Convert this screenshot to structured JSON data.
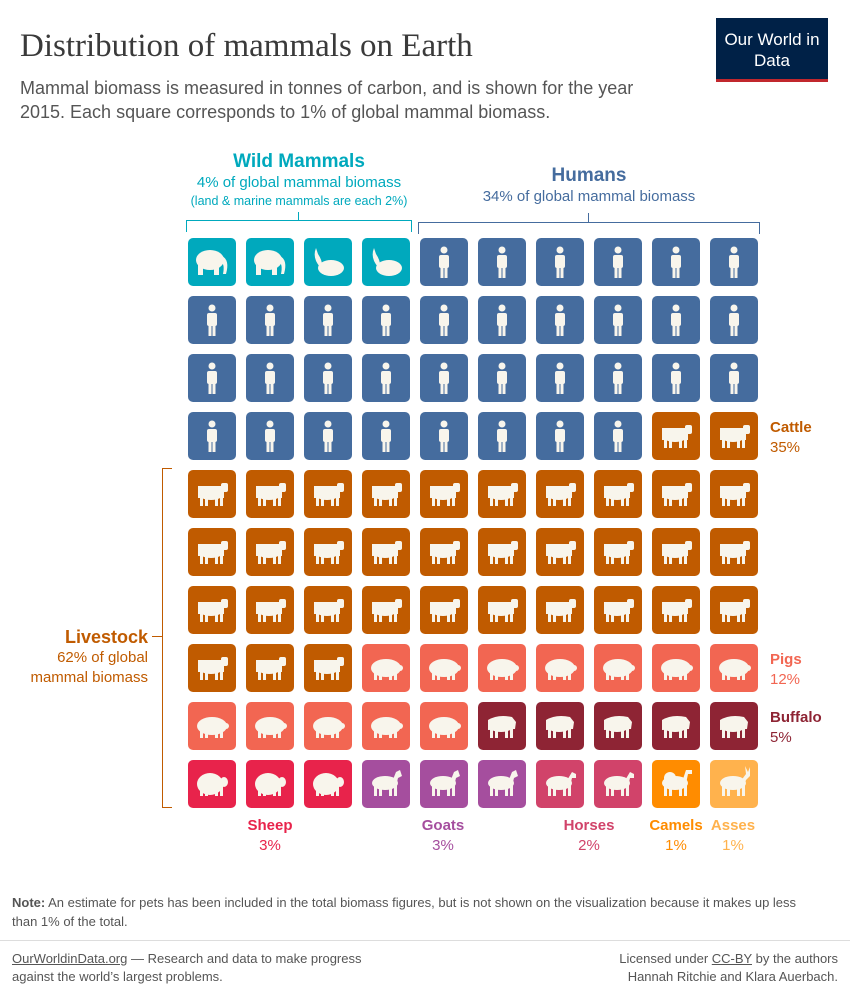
{
  "header": {
    "title": "Distribution of mammals on Earth",
    "subtitle": "Mammal biomass is measured in tonnes of carbon, and is shown for the year 2015. Each square corresponds to 1% of global mammal biomass.",
    "logo": "Our World in Data"
  },
  "groups": {
    "wild": {
      "title": "Wild Mammals",
      "line1": "4% of global mammal biomass",
      "line2": "(land & marine mammals are each 2%)",
      "color": "#00A9BD"
    },
    "humans": {
      "title": "Humans",
      "line1": "34% of global mammal biomass",
      "color": "#456C9E"
    },
    "livestock": {
      "title": "Livestock",
      "line1": "62% of global",
      "line2": "mammal biomass",
      "color": "#C05B00"
    }
  },
  "chart_data": {
    "type": "waffle",
    "unit": "1% of global mammal biomass per square",
    "grid": [
      10,
      10
    ],
    "categories": [
      {
        "name": "Land mammals",
        "value": 2,
        "color": "#00A9BD",
        "icon": "elephant-icon"
      },
      {
        "name": "Marine mammals",
        "value": 2,
        "color": "#00A9BD",
        "icon": "whale-icon"
      },
      {
        "name": "Humans",
        "value": 34,
        "color": "#456C9E",
        "icon": "human-icon"
      },
      {
        "name": "Cattle",
        "value": 35,
        "color": "#C05B00",
        "icon": "cow-icon",
        "label": "Cattle",
        "pct": "35%"
      },
      {
        "name": "Pigs",
        "value": 12,
        "color": "#F26652",
        "icon": "pig-icon",
        "label": "Pigs",
        "pct": "12%"
      },
      {
        "name": "Buffalo",
        "value": 5,
        "color": "#8E2434",
        "icon": "buffalo-icon",
        "label": "Buffalo",
        "pct": "5%"
      },
      {
        "name": "Sheep",
        "value": 3,
        "color": "#E8234B",
        "icon": "sheep-icon",
        "label": "Sheep",
        "pct": "3%"
      },
      {
        "name": "Goats",
        "value": 3,
        "color": "#A54E9E",
        "icon": "goat-icon",
        "label": "Goats",
        "pct": "3%"
      },
      {
        "name": "Horses",
        "value": 2,
        "color": "#D1436A",
        "icon": "horse-icon",
        "label": "Horses",
        "pct": "2%"
      },
      {
        "name": "Camels",
        "value": 1,
        "color": "#FF8C00",
        "icon": "camel-icon",
        "label": "Camels",
        "pct": "1%"
      },
      {
        "name": "Asses",
        "value": 1,
        "color": "#FFB24D",
        "icon": "donkey-icon",
        "label": "Asses",
        "pct": "1%"
      }
    ]
  },
  "note": {
    "label": "Note:",
    "text": " An estimate for pets has been included in the total biomass figures, but is not shown on the visualization because it makes up less than 1% of the total."
  },
  "footer": {
    "link": "OurWorldinData.org",
    "left": " — Research and data to make progress against the world’s largest problems.",
    "right1": "Licensed under ",
    "license": "CC-BY",
    "right2": " by the authors",
    "right3": "Hannah Ritchie and Klara Auerbach."
  }
}
